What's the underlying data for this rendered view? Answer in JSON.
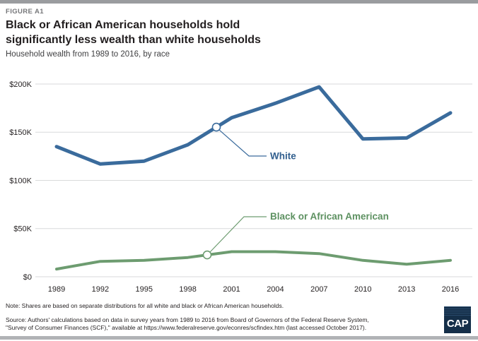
{
  "figure_label": "FIGURE A1",
  "title_line1": "Black or African American households hold",
  "title_line2": "significantly less wealth than white households",
  "subtitle": "Household wealth from 1989 to 2016, by race",
  "note": "Note: Shares are based on separate distributions for all white and black or African American households.",
  "source": "Source: Authors' calculations based on data in survey years from 1989 to 2016 from Board of Governors of the Federal Reserve System,\n\"Survey of Consumer Finances (SCF),\" available at https://www.federalreserve.gov/econres/scfindex.htm (last accessed October 2017).",
  "logo_text": "CAP",
  "colors": {
    "white_series": "#3a6b9c",
    "black_series": "#6d9c70",
    "white_label_text": "#33608f",
    "black_label_text": "#5d9161",
    "gridline": "#d9dadb",
    "topbar": "#9a9c9f",
    "bottombar": "#b1b3b6",
    "logo_bg": "#152f49"
  },
  "chart_data": {
    "type": "line",
    "title": "Household wealth from 1989 to 2016, by race",
    "unit": "USD thousands",
    "x": [
      1989,
      1992,
      1995,
      1998,
      2001,
      2004,
      2007,
      2010,
      2013,
      2016
    ],
    "x_tick_labels": [
      "1989",
      "1992",
      "1995",
      "1998",
      "2001",
      "2004",
      "2007",
      "2010",
      "2013",
      "2016"
    ],
    "y_axis": {
      "min": 0,
      "max": 200,
      "tick_values": [
        200,
        150,
        100,
        50,
        0
      ],
      "tick_labels": [
        "$200K",
        "$150K",
        "$100K",
        "$50K",
        "$0"
      ]
    },
    "grid": true,
    "legend_position": "inline callouts on lines near year 2000",
    "series": [
      {
        "name": "White",
        "color": "#3a6b9c",
        "values": [
          135,
          117,
          120,
          137,
          165,
          180,
          197,
          143,
          144,
          170
        ]
      },
      {
        "name": "Black or African American",
        "color": "#6d9c70",
        "values": [
          8,
          16,
          17,
          20,
          26,
          26,
          24,
          17,
          13,
          17
        ]
      }
    ]
  }
}
